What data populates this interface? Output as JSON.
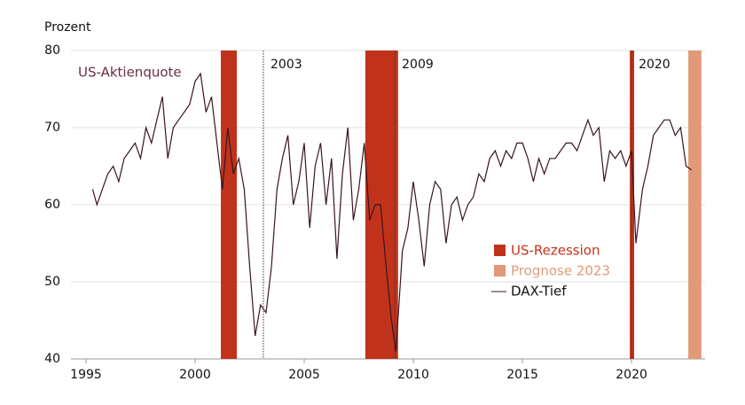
{
  "chart_data": {
    "type": "line",
    "y_label": "Prozent",
    "xlim": [
      1994.31,
      2023.37
    ],
    "xticks": [
      1995,
      2000,
      2005,
      2010,
      2015,
      2020
    ],
    "ylim": [
      40,
      80
    ],
    "yticks": [
      40,
      50,
      60,
      70,
      80
    ],
    "grid": true,
    "x": [
      1995.3,
      1995.5,
      1995.75,
      1996,
      1996.25,
      1996.5,
      1996.75,
      1997,
      1997.25,
      1997.5,
      1997.75,
      1998,
      1998.25,
      1998.5,
      1998.75,
      1999,
      1999.25,
      1999.5,
      1999.75,
      2000,
      2000.25,
      2000.5,
      2000.75,
      2001,
      2001.25,
      2001.5,
      2001.75,
      2002,
      2002.25,
      2002.5,
      2002.75,
      2003,
      2003.25,
      2003.5,
      2003.75,
      2004,
      2004.25,
      2004.5,
      2004.75,
      2005,
      2005.25,
      2005.5,
      2005.75,
      2006,
      2006.25,
      2006.5,
      2006.75,
      2007,
      2007.25,
      2007.5,
      2007.75,
      2008,
      2008.25,
      2008.5,
      2008.75,
      2009,
      2009.2,
      2009.5,
      2009.75,
      2010,
      2010.25,
      2010.5,
      2010.75,
      2011,
      2011.25,
      2011.5,
      2011.75,
      2012,
      2012.25,
      2012.5,
      2012.75,
      2013,
      2013.25,
      2013.5,
      2013.75,
      2014,
      2014.25,
      2014.5,
      2014.75,
      2015,
      2015.25,
      2015.5,
      2015.75,
      2016,
      2016.25,
      2016.5,
      2016.75,
      2017,
      2017.25,
      2017.5,
      2017.75,
      2018,
      2018.25,
      2018.5,
      2018.75,
      2019,
      2019.25,
      2019.5,
      2019.75,
      2020,
      2020.2,
      2020.5,
      2020.75,
      2021,
      2021.25,
      2021.5,
      2021.75,
      2022,
      2022.25,
      2022.5,
      2022.75
    ],
    "series": [
      {
        "name": "US-Aktienquote",
        "color": "#3a1420",
        "label_color": "#6b2d4a",
        "values": [
          62,
          60,
          62,
          64,
          65,
          63,
          66,
          67,
          68,
          66,
          70,
          68,
          71,
          74,
          66,
          70,
          71,
          72,
          73,
          76,
          77,
          72,
          74,
          68,
          62,
          70,
          64,
          66,
          62,
          52,
          43,
          47,
          46,
          52,
          62,
          66,
          69,
          60,
          63,
          68,
          57,
          65,
          68,
          60,
          66,
          53,
          64,
          70,
          58,
          62,
          68,
          58,
          60,
          60,
          52,
          45,
          41,
          54,
          57,
          63,
          58,
          52,
          60,
          63,
          62,
          55,
          60,
          61,
          58,
          60,
          61,
          64,
          63,
          66,
          67,
          65,
          67,
          66,
          68,
          68,
          66,
          63,
          66,
          64,
          66,
          66,
          67,
          68,
          68,
          67,
          69,
          71,
          69,
          70,
          63,
          67,
          66,
          67,
          65,
          67,
          55,
          62,
          65,
          69,
          70,
          71,
          71,
          69,
          70,
          65,
          64.5
        ]
      }
    ],
    "recessions": {
      "name": "US-Rezession",
      "color": "#c0331a",
      "ranges": [
        [
          2001.18,
          2001.91
        ],
        [
          2007.8,
          2009.3
        ],
        [
          2019.92,
          2020.12
        ]
      ]
    },
    "forecast": {
      "name": "Prognose 2023",
      "color": "#e09a78",
      "range": [
        2022.6,
        2023.2
      ]
    },
    "troughs": {
      "name": "DAX-Tief",
      "x": [
        2003.13,
        2009.15,
        2020.0
      ],
      "value_labels": [
        "2003",
        "2009",
        "2020"
      ]
    }
  }
}
